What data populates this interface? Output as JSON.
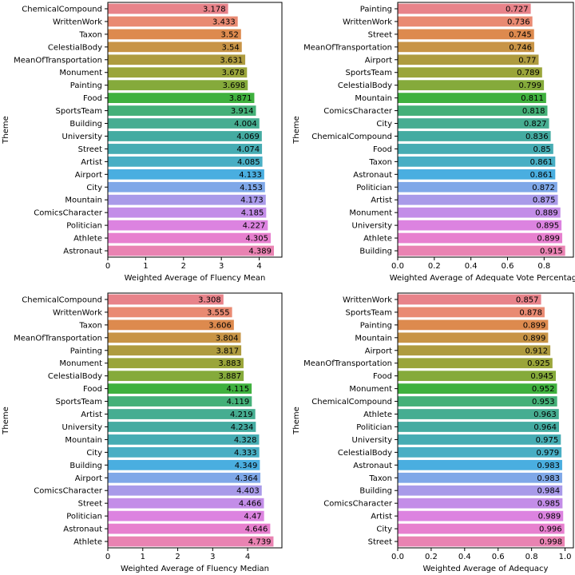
{
  "colors": [
    "#e8838a",
    "#e98a72",
    "#dd8a4e",
    "#c89446",
    "#ae9b3f",
    "#9aa53a",
    "#85aa3b",
    "#3fb13e",
    "#44b078",
    "#46ad91",
    "#44aba1",
    "#46acb3",
    "#48aec4",
    "#4aaee0",
    "#7fa8e8",
    "#a99ae9",
    "#c38de8",
    "#dc83e0",
    "#e780cf",
    "#e983b2"
  ],
  "chart_data": [
    {
      "type": "bar",
      "orientation": "horizontal",
      "ylabel": "Theme",
      "xlabel": "Weighted Average of Fluency Mean",
      "xlim": [
        0,
        4.6
      ],
      "xticks": [
        "0",
        "1",
        "2",
        "3",
        "4"
      ],
      "xtick_values": [
        0,
        1,
        2,
        3,
        4
      ],
      "categories": [
        "ChemicalCompound",
        "WrittenWork",
        "Taxon",
        "CelestialBody",
        "MeanOfTransportation",
        "Monument",
        "Painting",
        "Food",
        "SportsTeam",
        "Building",
        "University",
        "Street",
        "Artist",
        "Airport",
        "City",
        "Mountain",
        "ComicsCharacter",
        "Politician",
        "Athlete",
        "Astronaut"
      ],
      "values": [
        3.178,
        3.433,
        3.52,
        3.54,
        3.631,
        3.678,
        3.698,
        3.871,
        3.914,
        4.004,
        4.069,
        4.074,
        4.085,
        4.133,
        4.153,
        4.173,
        4.185,
        4.227,
        4.305,
        4.389
      ],
      "labels": [
        "3.178",
        "3.433",
        "3.52",
        "3.54",
        "3.631",
        "3.678",
        "3.698",
        "3.871",
        "3.914",
        "4.004",
        "4.069",
        "4.074",
        "4.085",
        "4.133",
        "4.153",
        "4.173",
        "4.185",
        "4.227",
        "4.305",
        "4.389"
      ]
    },
    {
      "type": "bar",
      "orientation": "horizontal",
      "ylabel": "Theme",
      "xlabel": "Weighted Average of Adequate Vote Percentage",
      "xlim": [
        0,
        0.96
      ],
      "xticks": [
        "0.0",
        "0.2",
        "0.4",
        "0.6",
        "0.8"
      ],
      "xtick_values": [
        0,
        0.2,
        0.4,
        0.6,
        0.8
      ],
      "categories": [
        "Painting",
        "WrittenWork",
        "Street",
        "MeanOfTransportation",
        "Airport",
        "SportsTeam",
        "CelestialBody",
        "Mountain",
        "ComicsCharacter",
        "City",
        "ChemicalCompound",
        "Food",
        "Taxon",
        "Astronaut",
        "Politician",
        "Artist",
        "Monument",
        "University",
        "Athlete",
        "Building"
      ],
      "values": [
        0.727,
        0.736,
        0.745,
        0.746,
        0.77,
        0.789,
        0.799,
        0.811,
        0.818,
        0.827,
        0.836,
        0.85,
        0.861,
        0.861,
        0.872,
        0.875,
        0.889,
        0.895,
        0.899,
        0.915
      ],
      "labels": [
        "0.727",
        "0.736",
        "0.745",
        "0.746",
        "0.77",
        "0.789",
        "0.799",
        "0.811",
        "0.818",
        "0.827",
        "0.836",
        "0.85",
        "0.861",
        "0.861",
        "0.872",
        "0.875",
        "0.889",
        "0.895",
        "0.899",
        "0.915"
      ]
    },
    {
      "type": "bar",
      "orientation": "horizontal",
      "ylabel": "Theme",
      "xlabel": "Weighted Average of Fluency Median",
      "xlim": [
        0,
        4.98
      ],
      "xticks": [
        "0",
        "1",
        "2",
        "3",
        "4"
      ],
      "xtick_values": [
        0,
        1,
        2,
        3,
        4
      ],
      "categories": [
        "ChemicalCompound",
        "WrittenWork",
        "Taxon",
        "MeanOfTransportation",
        "Painting",
        "Monument",
        "CelestialBody",
        "Food",
        "SportsTeam",
        "Artist",
        "University",
        "Mountain",
        "City",
        "Building",
        "Airport",
        "ComicsCharacter",
        "Street",
        "Politician",
        "Astronaut",
        "Athlete"
      ],
      "values": [
        3.308,
        3.555,
        3.606,
        3.804,
        3.817,
        3.883,
        3.887,
        4.115,
        4.119,
        4.219,
        4.234,
        4.328,
        4.333,
        4.349,
        4.364,
        4.403,
        4.466,
        4.47,
        4.646,
        4.739
      ],
      "labels": [
        "3.308",
        "3.555",
        "3.606",
        "3.804",
        "3.817",
        "3.883",
        "3.887",
        "4.115",
        "4.119",
        "4.219",
        "4.234",
        "4.328",
        "4.333",
        "4.349",
        "4.364",
        "4.403",
        "4.466",
        "4.47",
        "4.646",
        "4.739"
      ]
    },
    {
      "type": "bar",
      "orientation": "horizontal",
      "ylabel": "Theme",
      "xlabel": "Weighted Average of Adequacy",
      "xlim": [
        0,
        1.05
      ],
      "xticks": [
        "0.0",
        "0.2",
        "0.4",
        "0.6",
        "0.8",
        "1.0"
      ],
      "xtick_values": [
        0,
        0.2,
        0.4,
        0.6,
        0.8,
        1.0
      ],
      "categories": [
        "WrittenWork",
        "SportsTeam",
        "Painting",
        "Mountain",
        "Airport",
        "MeanOfTransportation",
        "Food",
        "Monument",
        "ChemicalCompound",
        "Athlete",
        "Politician",
        "University",
        "CelestialBody",
        "Astronaut",
        "Taxon",
        "Building",
        "ComicsCharacter",
        "Artist",
        "City",
        "Street"
      ],
      "values": [
        0.857,
        0.878,
        0.899,
        0.899,
        0.912,
        0.925,
        0.945,
        0.952,
        0.953,
        0.963,
        0.964,
        0.975,
        0.979,
        0.983,
        0.983,
        0.984,
        0.985,
        0.989,
        0.996,
        0.998
      ],
      "labels": [
        "0.857",
        "0.878",
        "0.899",
        "0.899",
        "0.912",
        "0.925",
        "0.945",
        "0.952",
        "0.953",
        "0.963",
        "0.964",
        "0.975",
        "0.979",
        "0.983",
        "0.983",
        "0.984",
        "0.985",
        "0.989",
        "0.996",
        "0.998"
      ]
    }
  ]
}
